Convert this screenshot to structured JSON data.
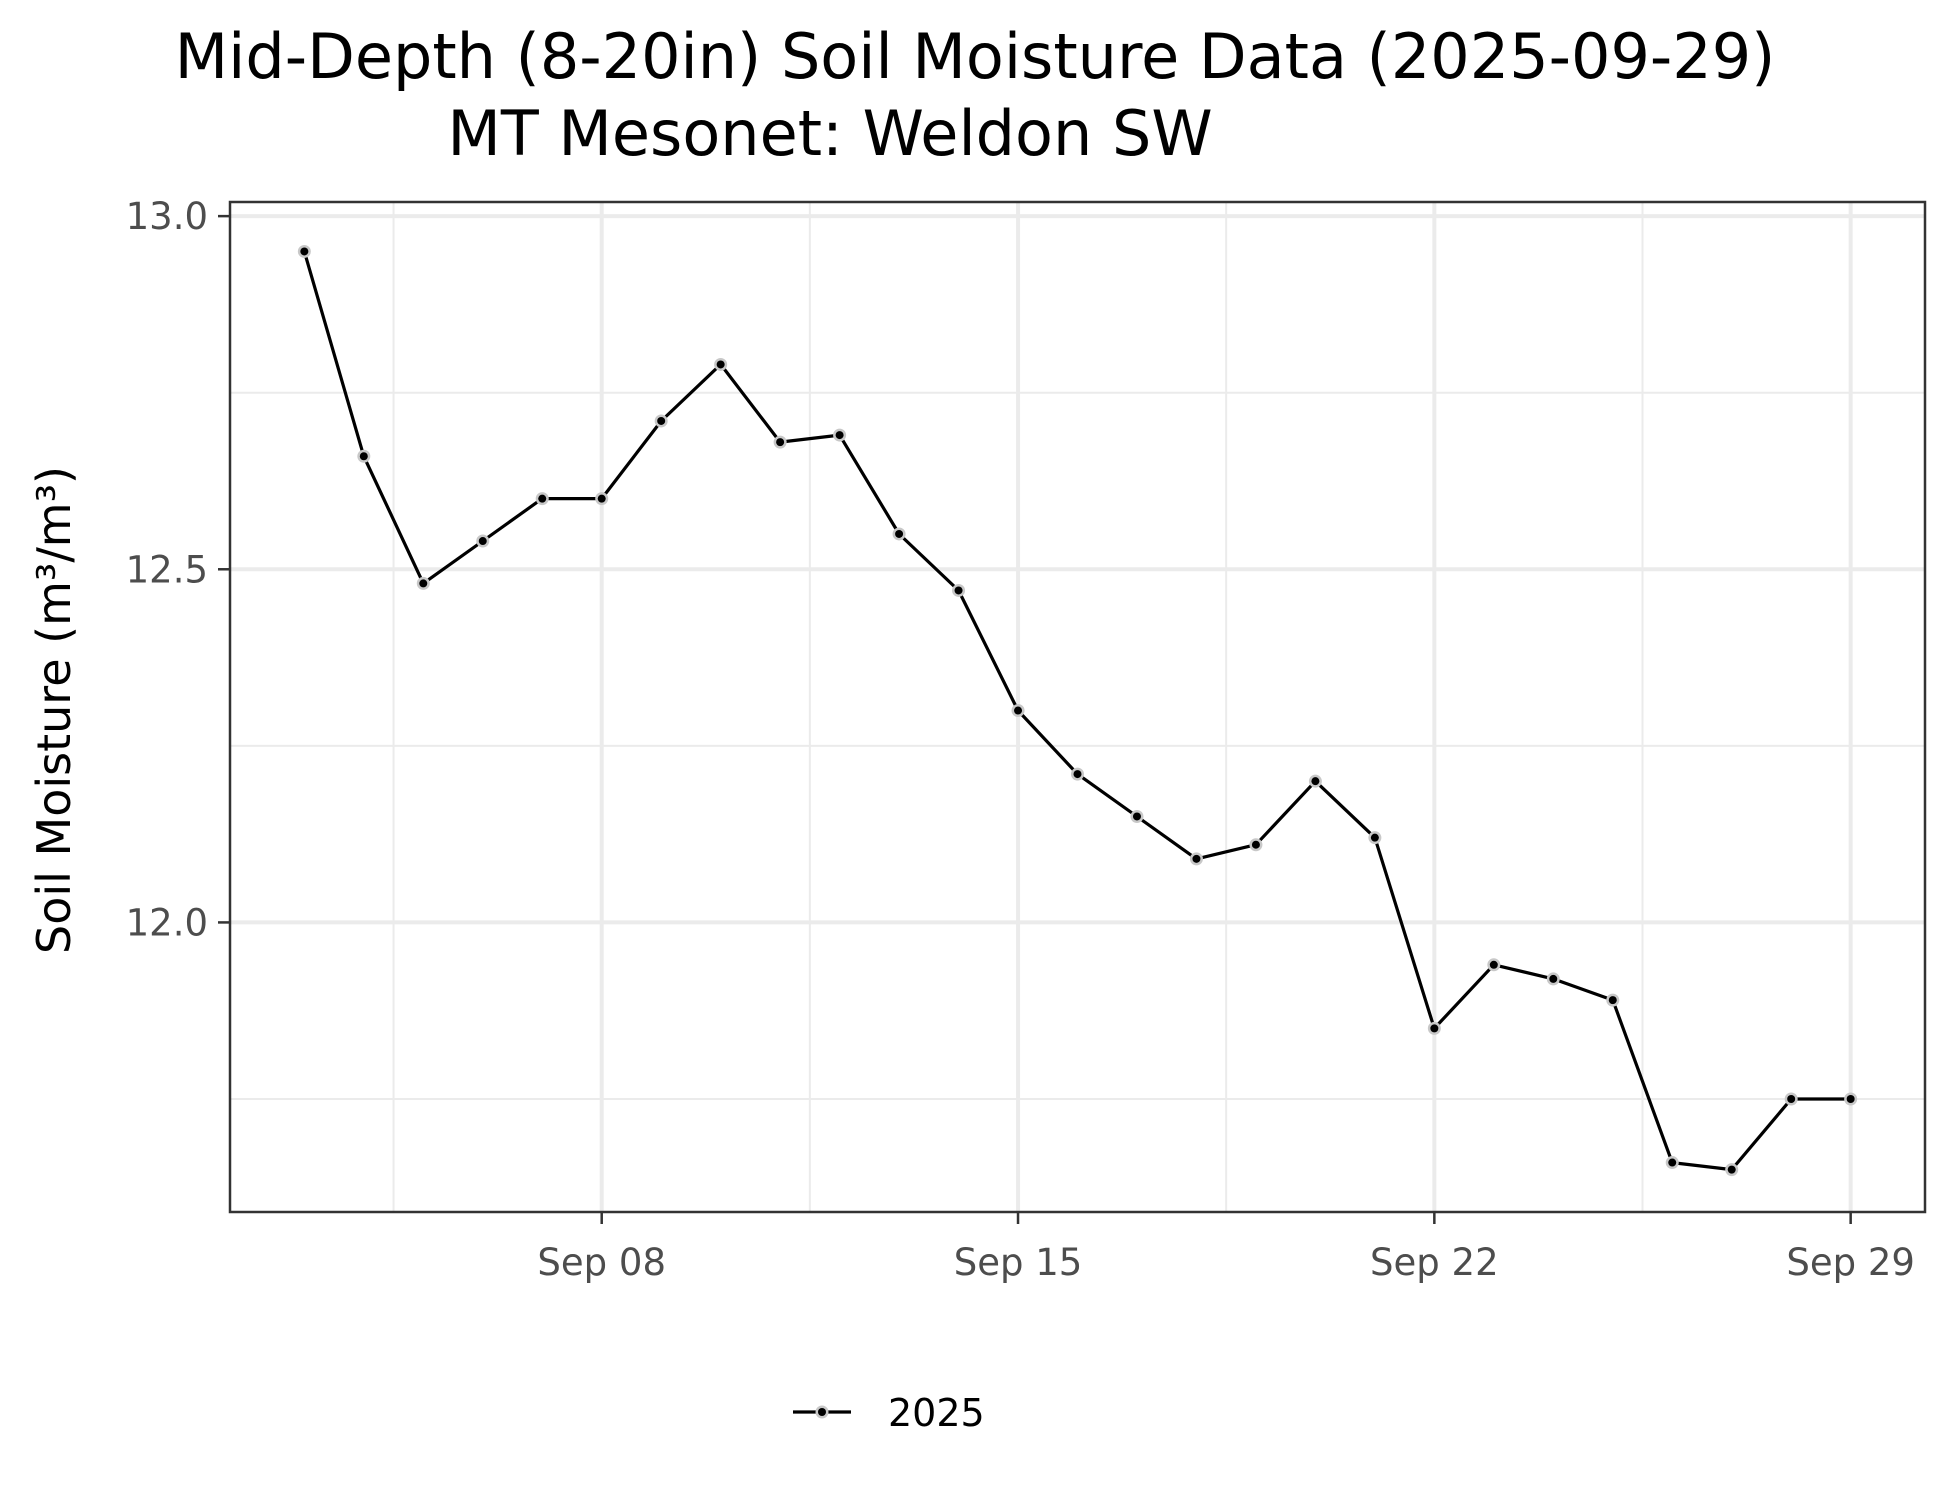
{
  "chart_data": {
    "type": "line",
    "title": "Mid-Depth (8-20in) Soil Moisture Data (2025-09-29)",
    "subtitle": "MT Mesonet: Weldon SW",
    "xlabel": "",
    "ylabel": "Soil Moisture (m³/m³)",
    "x_tick_labels": [
      "Sep 08",
      "Sep 15",
      "Sep 22",
      "Sep 29"
    ],
    "x_tick_dates": [
      "2025-09-08",
      "2025-09-15",
      "2025-09-22",
      "2025-09-29"
    ],
    "x_minor_gridlines": [
      "2025-09-04T12:00",
      "2025-09-11T12:00",
      "2025-09-18T12:00",
      "2025-09-25T12:00"
    ],
    "xlim": [
      "2025-09-01T18:00",
      "2025-09-30T06:00"
    ],
    "y_ticks": [
      12.0,
      12.5,
      13.0
    ],
    "y_tick_labels": [
      "12.0",
      "12.5",
      "13.0"
    ],
    "y_minor_gridlines": [
      11.75,
      12.25,
      12.75
    ],
    "ylim": [
      11.59,
      13.02
    ],
    "grid": true,
    "legend_position": "bottom",
    "series": [
      {
        "name": "2025",
        "color": "#000000",
        "marker_outline_color": "#c8c8c8",
        "x": [
          "2025-09-03",
          "2025-09-04",
          "2025-09-05",
          "2025-09-06",
          "2025-09-07",
          "2025-09-08",
          "2025-09-09",
          "2025-09-10",
          "2025-09-11",
          "2025-09-12",
          "2025-09-13",
          "2025-09-14",
          "2025-09-15",
          "2025-09-16",
          "2025-09-17",
          "2025-09-18",
          "2025-09-19",
          "2025-09-20",
          "2025-09-21",
          "2025-09-22",
          "2025-09-23",
          "2025-09-24",
          "2025-09-25",
          "2025-09-26",
          "2025-09-27",
          "2025-09-28",
          "2025-09-29"
        ],
        "values": [
          12.95,
          12.66,
          12.48,
          12.54,
          12.6,
          12.6,
          12.71,
          12.79,
          12.68,
          12.69,
          12.55,
          12.47,
          12.3,
          12.21,
          12.15,
          12.09,
          12.11,
          12.2,
          12.12,
          11.85,
          11.94,
          11.92,
          11.89,
          11.66,
          11.65,
          11.75,
          11.75
        ]
      }
    ]
  }
}
